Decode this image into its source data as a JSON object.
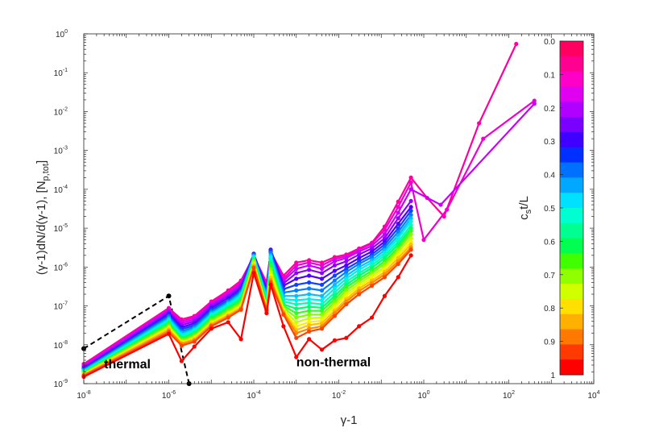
{
  "chart_data": {
    "type": "line",
    "xlabel_base": "γ-1",
    "ylabel": "(γ-1)dN/d(γ-1), [N",
    "ylabel_sub": "p,tot",
    "ylabel_end": "]",
    "xscale": "log",
    "yscale": "log",
    "xlim": [
      1e-08,
      10000.0
    ],
    "ylim": [
      1e-09,
      1
    ],
    "x_ticks": [
      {
        "base": "10",
        "exp": "-8"
      },
      {
        "base": "10",
        "exp": "-6"
      },
      {
        "base": "10",
        "exp": "-4"
      },
      {
        "base": "10",
        "exp": "-2"
      },
      {
        "base": "10",
        "exp": "0"
      },
      {
        "base": "10",
        "exp": "2"
      },
      {
        "base": "10",
        "exp": "4"
      }
    ],
    "y_ticks": [
      {
        "base": "10",
        "exp": "-9"
      },
      {
        "base": "10",
        "exp": "-8"
      },
      {
        "base": "10",
        "exp": "-7"
      },
      {
        "base": "10",
        "exp": "-6"
      },
      {
        "base": "10",
        "exp": "-5"
      },
      {
        "base": "10",
        "exp": "-4"
      },
      {
        "base": "10",
        "exp": "-3"
      },
      {
        "base": "10",
        "exp": "-2"
      },
      {
        "base": "10",
        "exp": "-1"
      },
      {
        "base": "10",
        "exp": "0"
      }
    ],
    "grid": false,
    "annotations": [
      {
        "text": "thermal",
        "x": 3e-08,
        "y": 2.5e-09
      },
      {
        "text": "non-thermal",
        "x": 0.001,
        "y": 2.8e-09
      }
    ],
    "colorbar": {
      "label_main": "c",
      "label_sub": "s",
      "label_end": "t/L",
      "range": [
        0,
        1
      ],
      "direction": "top-to-bottom",
      "tick_labels": [
        "0.0",
        "0.1",
        "0.2",
        "0.3",
        "0.4",
        "0.5",
        "0.6",
        "0.7",
        "0.8",
        "0.9",
        "1"
      ],
      "colors": [
        "#ff0060",
        "#ff0090",
        "#ff00c8",
        "#e000f0",
        "#b000ff",
        "#7a00ff",
        "#4000ff",
        "#0030ff",
        "#0070ff",
        "#00a8ff",
        "#00e0ff",
        "#00ffd0",
        "#00ff90",
        "#00ff50",
        "#40ff00",
        "#90ff00",
        "#d0ff00",
        "#ffe000",
        "#ffb000",
        "#ff7800",
        "#ff3a00",
        "#ff0000"
      ]
    },
    "thermal_reference": {
      "style": "dashed",
      "color": "#000000",
      "x": [
        1e-08,
        1e-06,
        3e-06
      ],
      "y": [
        8e-09,
        1.8e-07,
        1e-09
      ]
    },
    "series_x": [
      1e-08,
      1e-06,
      2e-06,
      4e-06,
      1e-05,
      2.5e-05,
      5e-05,
      0.0001,
      0.0002,
      0.00025,
      0.0005,
      0.001,
      0.002,
      0.004,
      0.008,
      0.015,
      0.03,
      0.06,
      0.12,
      0.25,
      0.5
    ],
    "series": [
      {
        "t": 0.05,
        "color": "#ff00a0",
        "y": [
          3.2e-09,
          8.8e-08,
          4.5e-08,
          5.5e-08,
          1.3e-07,
          2.5e-07,
          4.5e-07,
          1.9e-06,
          4e-07,
          2.4e-06,
          6e-07,
          1.3e-06,
          1.5e-06,
          1.3e-06,
          1.8e-06,
          2.1e-06,
          3e-06,
          4.2e-06,
          1.1e-05,
          4.8e-05,
          0.0002
        ],
        "tail": {
          "x": [
            1.2,
            3.0,
            20,
            150
          ],
          "y": [
            6e-05,
            2e-05,
            0.005,
            0.55
          ]
        }
      },
      {
        "t": 0.1,
        "color": "#f000d0",
        "y": [
          3e-09,
          8.2e-08,
          4e-08,
          5e-08,
          1.2e-07,
          2.2e-07,
          4e-07,
          2e-06,
          3.5e-07,
          2.5e-06,
          5e-07,
          1.1e-06,
          1.3e-06,
          1.1e-06,
          1.6e-06,
          1.9e-06,
          2.8e-06,
          4e-06,
          9e-06,
          3.5e-05,
          0.00015
        ],
        "tail": {
          "x": [
            1.0,
            3.5,
            25,
            400
          ],
          "y": [
            5e-06,
            3e-05,
            0.002,
            0.019
          ]
        }
      },
      {
        "t": 0.15,
        "color": "#c800ff",
        "y": [
          2.8e-09,
          7.6e-08,
          3.6e-08,
          4.5e-08,
          1.1e-07,
          2e-07,
          3.6e-07,
          2.1e-06,
          3.1e-07,
          2.6e-06,
          4.4e-07,
          9e-07,
          1.1e-06,
          9e-07,
          1.4e-06,
          1.7e-06,
          2.5e-06,
          3.5e-06,
          7e-06,
          2.5e-05,
          0.0001
        ],
        "tail": {
          "x": [
            2.5,
            400
          ],
          "y": [
            4e-05,
            0.016
          ]
        }
      },
      {
        "t": 0.2,
        "color": "#9000ff",
        "y": [
          2.6e-09,
          7e-08,
          3.2e-08,
          4e-08,
          1e-07,
          1.8e-07,
          3.2e-07,
          2.2e-06,
          2.8e-07,
          2.7e-06,
          3.8e-07,
          7e-07,
          8.5e-07,
          7e-07,
          1.1e-06,
          1.4e-06,
          2.1e-06,
          3e-06,
          5.5e-06,
          1.8e-05,
          5e-05
        ]
      },
      {
        "t": 0.25,
        "color": "#5000ff",
        "y": [
          2.5e-09,
          6.4e-08,
          2.8e-08,
          3.6e-08,
          9e-08,
          1.6e-07,
          2.9e-07,
          2.2e-06,
          2.5e-07,
          2.8e-06,
          3.3e-07,
          5e-07,
          6e-07,
          5e-07,
          8e-07,
          1.1e-06,
          1.7e-06,
          2.5e-06,
          4.5e-06,
          1.3e-05,
          3.5e-05
        ]
      },
      {
        "t": 0.3,
        "color": "#1040ff",
        "y": [
          2.4e-09,
          5.8e-08,
          2.5e-08,
          3.2e-08,
          8e-08,
          1.4e-07,
          2.6e-07,
          2.1e-06,
          2.2e-07,
          2.6e-06,
          2.7e-07,
          3.5e-07,
          4e-07,
          3.5e-07,
          6e-07,
          9e-07,
          1.4e-06,
          2.1e-06,
          3.8e-06,
          1e-05,
          2.8e-05
        ]
      },
      {
        "t": 0.35,
        "color": "#0080ff",
        "y": [
          2.3e-09,
          5.3e-08,
          2.2e-08,
          2.9e-08,
          7.2e-08,
          1.3e-07,
          2.3e-07,
          2e-06,
          2e-07,
          2.3e-06,
          2.2e-07,
          2.5e-07,
          2.8e-07,
          2.5e-07,
          4.5e-07,
          7.5e-07,
          1.2e-06,
          1.8e-06,
          3.2e-06,
          8e-06,
          2.2e-05
        ]
      },
      {
        "t": 0.4,
        "color": "#00c0ff",
        "y": [
          2.2e-09,
          4.8e-08,
          2e-08,
          2.6e-08,
          6.5e-08,
          1.2e-07,
          2.1e-07,
          1.9e-06,
          1.8e-07,
          2e-06,
          1.8e-07,
          1.8e-07,
          2e-07,
          1.8e-07,
          3.5e-07,
          6e-07,
          1e-06,
          1.5e-06,
          2.7e-06,
          6.5e-06,
          1.8e-05
        ]
      },
      {
        "t": 0.45,
        "color": "#00f0e8",
        "y": [
          2.1e-09,
          4.4e-08,
          1.8e-08,
          2.4e-08,
          6e-08,
          1.1e-07,
          1.9e-07,
          1.8e-06,
          1.6e-07,
          1.8e-06,
          1.5e-07,
          1.4e-07,
          1.5e-07,
          1.4e-07,
          2.8e-07,
          5e-07,
          8.5e-07,
          1.3e-06,
          2.3e-06,
          5.5e-06,
          1.5e-05
        ]
      },
      {
        "t": 0.5,
        "color": "#00ffb0",
        "y": [
          2e-09,
          4e-08,
          1.6e-08,
          2.2e-08,
          5.5e-08,
          1e-07,
          1.7e-07,
          1.7e-06,
          1.4e-07,
          1.5e-06,
          1.3e-07,
          1.1e-07,
          1.2e-07,
          1.1e-07,
          2.2e-07,
          4.2e-07,
          7e-07,
          1.1e-06,
          2e-06,
          4.5e-06,
          1.2e-05
        ]
      },
      {
        "t": 0.55,
        "color": "#00ff70",
        "y": [
          1.95e-09,
          3.7e-08,
          1.5e-08,
          2e-08,
          5e-08,
          9e-08,
          1.5e-07,
          1.6e-06,
          1.2e-07,
          1.3e-06,
          1.1e-07,
          8.5e-08,
          9.5e-08,
          9e-08,
          1.8e-07,
          3.5e-07,
          6e-07,
          9.5e-07,
          1.7e-06,
          3.8e-06,
          1e-05
        ]
      },
      {
        "t": 0.6,
        "color": "#30ff20",
        "y": [
          1.9e-09,
          3.4e-08,
          1.4e-08,
          1.85e-08,
          4.6e-08,
          8.2e-08,
          1.35e-07,
          1.5e-06,
          1.1e-07,
          1.1e-06,
          1e-07,
          6.5e-08,
          7.5e-08,
          7.5e-08,
          1.5e-07,
          3e-07,
          5e-07,
          8e-07,
          1.4e-06,
          3.2e-06,
          8.5e-06
        ]
      },
      {
        "t": 0.65,
        "color": "#80ff00",
        "y": [
          1.85e-09,
          3.1e-08,
          1.3e-08,
          1.7e-08,
          4.2e-08,
          7.5e-08,
          1.2e-07,
          1.4e-06,
          1e-07,
          9e-07,
          9e-08,
          5e-08,
          6e-08,
          6e-08,
          1.25e-07,
          2.5e-07,
          4.3e-07,
          7e-07,
          1.2e-06,
          2.8e-06,
          7e-06
        ]
      },
      {
        "t": 0.7,
        "color": "#c8ff00",
        "y": [
          1.8e-09,
          2.9e-08,
          1.2e-08,
          1.6e-08,
          3.9e-08,
          6.9e-08,
          1.1e-07,
          1.3e-06,
          9.5e-08,
          7.5e-07,
          8e-08,
          3.8e-08,
          4.8e-08,
          5e-08,
          1.05e-07,
          2.1e-07,
          3.7e-07,
          6e-07,
          1e-06,
          2.4e-06,
          5.5e-06
        ]
      },
      {
        "t": 0.75,
        "color": "#fff000",
        "y": [
          1.75e-09,
          2.7e-08,
          1.15e-08,
          1.5e-08,
          3.6e-08,
          6.3e-08,
          1e-07,
          1.2e-06,
          9e-08,
          6.2e-07,
          7.5e-08,
          3e-08,
          3.8e-08,
          4.2e-08,
          9e-08,
          1.8e-07,
          3.2e-07,
          5.2e-07,
          9e-07,
          2e-06,
          4.5e-06
        ]
      },
      {
        "t": 0.8,
        "color": "#ffc000",
        "y": [
          1.7e-09,
          2.5e-08,
          1.1e-08,
          1.4e-08,
          3.4e-08,
          5.8e-08,
          9e-08,
          1.1e-06,
          8.5e-08,
          5.2e-07,
          7e-08,
          2.4e-08,
          3.2e-08,
          3.6e-08,
          7.5e-08,
          1.5e-07,
          2.8e-07,
          4.5e-07,
          7.5e-07,
          1.7e-06,
          3.8e-06
        ]
      },
      {
        "t": 0.85,
        "color": "#ff8800",
        "y": [
          1.65e-09,
          2.3e-08,
          1.05e-08,
          1.3e-08,
          3.2e-08,
          5.4e-08,
          8.5e-08,
          1e-06,
          8e-08,
          4.5e-07,
          6.5e-08,
          2e-08,
          2.6e-08,
          3e-08,
          6.5e-08,
          1.3e-07,
          2.4e-07,
          3.9e-07,
          6.5e-07,
          1.4e-06,
          3.2e-06
        ]
      },
      {
        "t": 0.9,
        "color": "#ff4400",
        "y": [
          1.6e-09,
          2.1e-08,
          9.5e-09,
          1.2e-08,
          3e-08,
          5e-08,
          8e-08,
          9.5e-07,
          7.5e-08,
          4e-07,
          6e-08,
          1.5e-08,
          2.2e-08,
          2.6e-08,
          5.5e-08,
          1.1e-07,
          2e-07,
          3.3e-07,
          5.5e-07,
          1.2e-06,
          2.8e-06
        ]
      },
      {
        "t": 1.0,
        "color": "#ff0000",
        "y": [
          1.5e-09,
          1.9e-08,
          3.8e-09,
          9e-09,
          2.6e-08,
          3.8e-08,
          1.4e-08,
          7e-07,
          6.5e-08,
          3.5e-07,
          3e-08,
          4.8e-09,
          1.4e-08,
          7.5e-09,
          1.3e-08,
          1.5e-08,
          3e-08,
          5e-08,
          1.8e-07,
          5.5e-07,
          2e-06
        ]
      }
    ]
  }
}
